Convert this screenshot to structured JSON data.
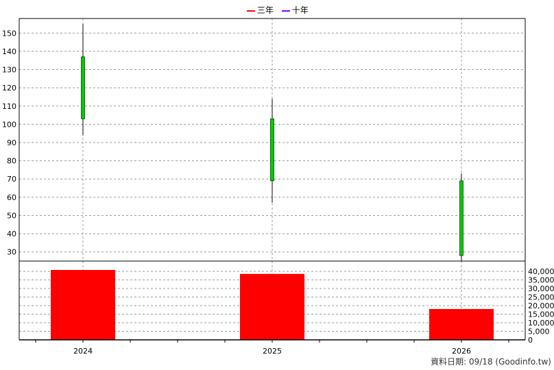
{
  "chart_data": {
    "type": "candlestick+bar",
    "categories": [
      "2024",
      "2025",
      "2026"
    ],
    "legend": [
      {
        "name": "三年",
        "color": "#ff0000"
      },
      {
        "name": "十年",
        "color": "#8000ff"
      }
    ],
    "candles": [
      {
        "x": "2024",
        "open": 103,
        "close": 137,
        "high": 155,
        "low": 94,
        "color": "#00cc00"
      },
      {
        "x": "2025",
        "open": 69,
        "close": 103,
        "high": 114,
        "low": 57,
        "color": "#00cc00"
      },
      {
        "x": "2026",
        "open": 28,
        "close": 69,
        "high": 73,
        "low": 25,
        "color": "#00cc00"
      }
    ],
    "volume": {
      "values": [
        40800,
        38500,
        18000
      ],
      "color": "#ff0000"
    },
    "price_axis": {
      "ylim": [
        25,
        158
      ],
      "ticks": [
        30,
        40,
        50,
        60,
        70,
        80,
        90,
        100,
        110,
        120,
        130,
        140,
        150
      ]
    },
    "volume_axis": {
      "ylim": [
        0,
        40000
      ],
      "ticks": [
        0,
        5000,
        10000,
        15000,
        20000,
        25000,
        30000,
        35000,
        40000
      ],
      "tick_labels": [
        "0",
        "5,000",
        "10,000",
        "15,000",
        "20,000",
        "25,000",
        "30,000",
        "35,000",
        "40,000"
      ]
    },
    "grid": true
  },
  "footer_text": "資料日期: 09/18  (Goodinfo.tw)"
}
